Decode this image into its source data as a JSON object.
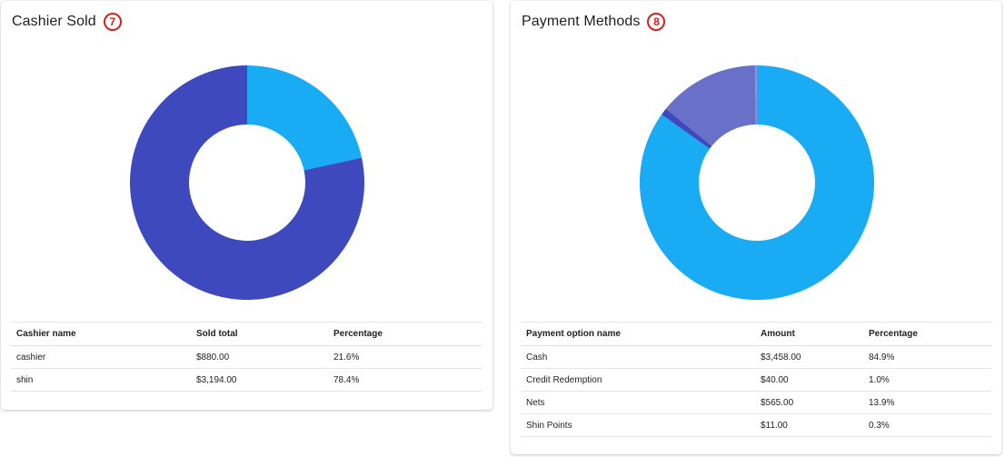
{
  "cashier": {
    "title": "Cashier Sold",
    "badge": "7",
    "columns": [
      "Cashier name",
      "Sold total",
      "Percentage"
    ],
    "rows": [
      [
        "cashier",
        "$880.00",
        "21.6%"
      ],
      [
        "shin",
        "$3,194.00",
        "78.4%"
      ]
    ]
  },
  "payment": {
    "title": "Payment Methods",
    "badge": "8",
    "columns": [
      "Payment option name",
      "Amount",
      "Percentage"
    ],
    "rows": [
      [
        "Cash",
        "$3,458.00",
        "84.9%"
      ],
      [
        "Credit Redemption",
        "$40.00",
        "1.0%"
      ],
      [
        "Nets",
        "$565.00",
        "13.9%"
      ],
      [
        "Shin Points",
        "$11.00",
        "0.3%"
      ]
    ]
  },
  "chart_data": [
    {
      "type": "pie",
      "donut": true,
      "title": "Cashier Sold",
      "categories": [
        "cashier",
        "shin"
      ],
      "values": [
        880.0,
        3194.0
      ],
      "colors": [
        "#1aabf5",
        "#3d49bd"
      ]
    },
    {
      "type": "pie",
      "donut": true,
      "title": "Payment Methods",
      "categories": [
        "Cash",
        "Credit Redemption",
        "Nets",
        "Shin Points"
      ],
      "values": [
        3458.0,
        40.0,
        565.0,
        11.0
      ],
      "colors": [
        "#1aabf5",
        "#3d49bd",
        "#6870c8",
        "#8a92d6"
      ]
    }
  ]
}
